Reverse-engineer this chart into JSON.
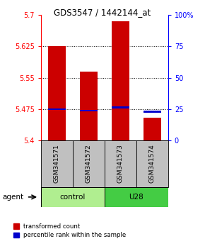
{
  "title": "GDS3547 / 1442144_at",
  "samples": [
    "GSM341571",
    "GSM341572",
    "GSM341573",
    "GSM341574"
  ],
  "bar_bottom": 5.4,
  "red_bar_tops": [
    5.625,
    5.565,
    5.685,
    5.455
  ],
  "blue_bar_values": [
    5.473,
    5.47,
    5.477,
    5.467
  ],
  "ylim_left": [
    5.4,
    5.7
  ],
  "ylim_right": [
    0,
    100
  ],
  "yticks_left": [
    5.4,
    5.475,
    5.55,
    5.625,
    5.7
  ],
  "ytick_labels_left": [
    "5.4",
    "5.475",
    "5.55",
    "5.625",
    "5.7"
  ],
  "yticks_right": [
    0,
    25,
    50,
    75,
    100
  ],
  "ytick_labels_right": [
    "0",
    "25",
    "50",
    "75",
    "100%"
  ],
  "hlines": [
    5.475,
    5.55,
    5.625
  ],
  "bar_color_red": "#CC0000",
  "bar_color_blue": "#0000CC",
  "bar_width": 0.55,
  "sample_bg_color": "#C0C0C0",
  "ctrl_color": "#B0EE90",
  "u28_color": "#44CC44",
  "legend_red_label": "transformed count",
  "legend_blue_label": "percentile rank within the sample"
}
